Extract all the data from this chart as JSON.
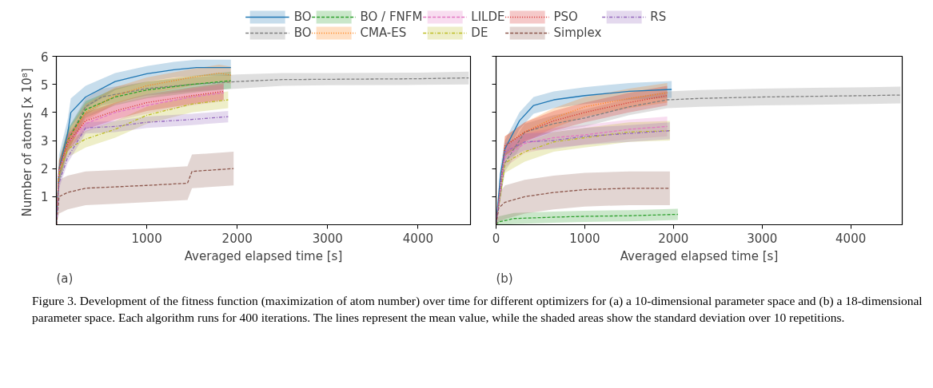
{
  "chart_data": [
    {
      "type": "line",
      "xlabel": "Averaged elapsed time [s]",
      "ylabel": "Number of atoms  [x 10⁸]",
      "xlim": [
        0,
        4580
      ],
      "ylim": [
        0,
        6
      ],
      "xticks": [
        1000,
        2000,
        3000,
        4000
      ],
      "yticks": [
        1,
        2,
        3,
        4,
        5,
        6
      ],
      "legend": "top",
      "grid": false,
      "annotations": [
        "(a)",
        "Figure 3. Development of the fitness function (maximization of atom number) over time for different optimizers for (a) a 10-dimensional parameter space and (b) a 18-dimensional parameter space. Each algorithm runs for 400 iterations. The lines represent the mean value, while the shaded areas show the standard deviation over 10 repetitions."
      ],
      "series": [
        {
          "name": "BO",
          "color": "#1f77b4",
          "line_style": "solid",
          "x": [
            0,
            30,
            125,
            160,
            323,
            650,
            1000,
            1300,
            1550,
            1930
          ],
          "values": [
            0,
            2.0,
            3.25,
            4.0,
            4.55,
            5.1,
            5.38,
            5.52,
            5.6,
            5.6
          ],
          "lower": [
            0,
            1.5,
            2.75,
            3.5,
            4.15,
            4.8,
            5.1,
            5.25,
            5.3,
            5.3
          ],
          "upper": [
            0,
            2.5,
            3.75,
            4.5,
            4.95,
            5.4,
            5.65,
            5.8,
            5.88,
            5.88
          ]
        },
        {
          "name": "BO",
          "color": "#7f7f7f",
          "line_style": "dashed",
          "x": [
            0,
            30,
            125,
            323,
            500,
            1000,
            1500,
            2000,
            2500,
            3000,
            4000,
            4560
          ],
          "values": [
            0,
            1.8,
            3.0,
            4.2,
            4.55,
            4.85,
            5.0,
            5.1,
            5.17,
            5.18,
            5.2,
            5.23
          ],
          "lower": [
            0,
            1.4,
            2.6,
            3.9,
            4.25,
            4.6,
            4.75,
            4.85,
            4.95,
            4.97,
            4.98,
            5.0
          ],
          "upper": [
            0,
            2.2,
            3.4,
            4.5,
            4.85,
            5.1,
            5.25,
            5.35,
            5.4,
            5.4,
            5.42,
            5.45
          ]
        },
        {
          "name": "BO / FNFM",
          "color": "#2ca02c",
          "line_style": "dashed",
          "x": [
            0,
            30,
            125,
            323,
            650,
            1000,
            1500,
            1930
          ],
          "values": [
            0,
            1.9,
            3.0,
            4.1,
            4.55,
            4.8,
            5.0,
            5.13
          ],
          "lower": [
            0,
            1.5,
            2.6,
            3.8,
            4.25,
            4.5,
            4.7,
            4.85
          ],
          "upper": [
            0,
            2.3,
            3.4,
            4.4,
            4.85,
            5.1,
            5.3,
            5.45
          ]
        },
        {
          "name": "CMA-ES",
          "color": "#ff7f0e",
          "line_style": "dotted",
          "x": [
            0,
            30,
            125,
            323,
            650,
            1000,
            1500,
            1800,
            1930
          ],
          "values": [
            0,
            2.0,
            3.0,
            4.0,
            4.6,
            4.95,
            5.25,
            5.4,
            5.33
          ],
          "lower": [
            0,
            1.7,
            2.7,
            3.7,
            4.3,
            4.65,
            4.95,
            5.1,
            5.03
          ],
          "upper": [
            0,
            2.3,
            3.3,
            4.3,
            4.9,
            5.25,
            5.55,
            5.7,
            5.63
          ]
        },
        {
          "name": "LILDE",
          "color": "#e377c2",
          "line_style": "dashed",
          "x": [
            0,
            30,
            125,
            323,
            650,
            1000,
            1500,
            1850
          ],
          "values": [
            0,
            1.9,
            2.9,
            3.6,
            4.0,
            4.25,
            4.55,
            4.7
          ],
          "lower": [
            0,
            1.6,
            2.6,
            3.3,
            3.7,
            3.95,
            4.25,
            4.4
          ],
          "upper": [
            0,
            2.2,
            3.2,
            3.9,
            4.3,
            4.55,
            4.85,
            5.0
          ]
        },
        {
          "name": "DE",
          "color": "#bcbd22",
          "line_style": "dashdot",
          "x": [
            0,
            30,
            125,
            323,
            650,
            1000,
            1500,
            1900
          ],
          "values": [
            0,
            1.8,
            2.7,
            3.05,
            3.4,
            3.9,
            4.3,
            4.45
          ],
          "lower": [
            0,
            1.5,
            2.4,
            2.75,
            3.1,
            3.6,
            4.0,
            4.15
          ],
          "upper": [
            0,
            2.1,
            3.0,
            3.35,
            3.7,
            4.2,
            4.6,
            4.75
          ]
        },
        {
          "name": "PSO",
          "color": "#d62728",
          "line_style": "dotted",
          "x": [
            0,
            30,
            125,
            323,
            650,
            1000,
            1500,
            1850
          ],
          "values": [
            0,
            2.0,
            2.9,
            3.7,
            4.05,
            4.35,
            4.6,
            4.75
          ],
          "lower": [
            0,
            1.7,
            2.6,
            3.4,
            3.75,
            4.05,
            4.3,
            4.45
          ],
          "upper": [
            0,
            2.3,
            3.2,
            4.0,
            4.35,
            4.65,
            4.9,
            5.05
          ]
        },
        {
          "name": "Simplex",
          "color": "#8c564b",
          "line_style": "dashed",
          "x": [
            0,
            30,
            125,
            323,
            650,
            1000,
            1450,
            1500,
            1960
          ],
          "values": [
            0,
            1.0,
            1.15,
            1.3,
            1.35,
            1.4,
            1.48,
            1.9,
            2.0
          ],
          "lower": [
            0,
            0.4,
            0.55,
            0.7,
            0.75,
            0.8,
            0.88,
            1.3,
            1.4
          ],
          "upper": [
            0,
            1.6,
            1.75,
            1.9,
            1.95,
            2.0,
            2.08,
            2.5,
            2.6
          ]
        },
        {
          "name": "RS",
          "color": "#9467bd",
          "line_style": "dashdot",
          "x": [
            0,
            30,
            125,
            323,
            650,
            1000,
            1500,
            1900
          ],
          "values": [
            0,
            1.5,
            2.4,
            3.45,
            3.5,
            3.65,
            3.75,
            3.85
          ],
          "lower": [
            0,
            1.3,
            2.2,
            3.25,
            3.3,
            3.45,
            3.55,
            3.65
          ],
          "upper": [
            0,
            1.7,
            2.6,
            3.65,
            3.7,
            3.85,
            3.95,
            4.05
          ]
        }
      ]
    },
    {
      "type": "line",
      "xlabel": "Averaged elapsed time [s]",
      "xlim": [
        0,
        4580
      ],
      "ylim": [
        0,
        6
      ],
      "xticks": [
        0,
        1000,
        2000,
        3000,
        4000
      ],
      "yticks": [
        1,
        2,
        3,
        4,
        5,
        6
      ],
      "tick_labels": "x",
      "grid": false,
      "annotations": [
        "(b)"
      ],
      "series": [
        {
          "color": "#1f77b4",
          "line_style": "solid",
          "x": [
            0,
            50,
            100,
            263,
            423,
            650,
            1000,
            1500,
            1980
          ],
          "values": [
            0,
            1.8,
            2.7,
            3.7,
            4.25,
            4.45,
            4.6,
            4.75,
            4.82
          ],
          "lower": [
            0,
            1.5,
            2.4,
            3.4,
            3.95,
            4.15,
            4.3,
            4.45,
            4.52
          ],
          "upper": [
            0,
            2.1,
            3.0,
            4.0,
            4.55,
            4.75,
            4.9,
            5.05,
            5.12
          ]
        },
        {
          "color": "#7f7f7f",
          "line_style": "dashed",
          "x": [
            0,
            100,
            323,
            650,
            1000,
            1500,
            1930,
            2300,
            3000,
            4200,
            4560
          ],
          "values": [
            0,
            2.2,
            3.3,
            3.6,
            3.8,
            4.2,
            4.45,
            4.5,
            4.55,
            4.6,
            4.62
          ],
          "lower": [
            0,
            1.9,
            3.0,
            3.3,
            3.5,
            3.9,
            4.15,
            4.2,
            4.25,
            4.3,
            4.32
          ],
          "upper": [
            0,
            2.5,
            3.6,
            3.9,
            4.1,
            4.5,
            4.75,
            4.8,
            4.85,
            4.9,
            4.92
          ]
        },
        {
          "color": "#2ca02c",
          "line_style": "dashed",
          "x": [
            0,
            30,
            200,
            650,
            1000,
            1500,
            2050
          ],
          "values": [
            0,
            0.1,
            0.22,
            0.27,
            0.3,
            0.32,
            0.37
          ],
          "lower": [
            0,
            0,
            0.02,
            0.07,
            0.1,
            0.12,
            0.17
          ],
          "upper": [
            0,
            0.3,
            0.42,
            0.47,
            0.5,
            0.52,
            0.57
          ]
        },
        {
          "color": "#ff7f0e",
          "line_style": "dotted",
          "x": [
            0,
            100,
            323,
            650,
            1000,
            1500,
            1930
          ],
          "values": [
            0,
            2.8,
            3.3,
            3.8,
            4.2,
            4.5,
            4.7
          ],
          "lower": [
            0,
            2.45,
            2.95,
            3.45,
            3.85,
            4.15,
            4.35
          ],
          "upper": [
            0,
            3.15,
            3.65,
            4.15,
            4.55,
            4.85,
            5.05
          ]
        },
        {
          "color": "#e377c2",
          "line_style": "dashed",
          "x": [
            0,
            100,
            323,
            650,
            1000,
            1500,
            1930
          ],
          "values": [
            0,
            2.4,
            2.9,
            3.1,
            3.2,
            3.4,
            3.5
          ],
          "lower": [
            0,
            2.05,
            2.55,
            2.75,
            2.85,
            3.05,
            3.15
          ],
          "upper": [
            0,
            2.75,
            3.25,
            3.45,
            3.55,
            3.75,
            3.85
          ]
        },
        {
          "color": "#bcbd22",
          "line_style": "dashdot",
          "x": [
            0,
            100,
            323,
            650,
            1000,
            1500,
            1960
          ],
          "values": [
            0,
            2.2,
            2.6,
            2.95,
            3.1,
            3.3,
            3.35
          ],
          "lower": [
            0,
            1.85,
            2.25,
            2.6,
            2.75,
            2.95,
            3.0
          ],
          "upper": [
            0,
            2.55,
            2.95,
            3.3,
            3.45,
            3.65,
            3.7
          ]
        },
        {
          "color": "#d62728",
          "line_style": "dotted",
          "x": [
            0,
            100,
            323,
            650,
            1000,
            1500,
            1930
          ],
          "values": [
            0,
            2.8,
            3.3,
            3.7,
            4.0,
            4.35,
            4.6
          ],
          "lower": [
            0,
            2.45,
            2.95,
            3.35,
            3.65,
            4.0,
            4.25
          ],
          "upper": [
            0,
            3.15,
            3.65,
            4.05,
            4.35,
            4.7,
            4.95
          ]
        },
        {
          "color": "#8c564b",
          "line_style": "dashed",
          "x": [
            0,
            30,
            100,
            323,
            650,
            1000,
            1500,
            1960
          ],
          "values": [
            0,
            0.6,
            0.8,
            1.0,
            1.15,
            1.25,
            1.3,
            1.3
          ],
          "lower": [
            0,
            0.1,
            0.2,
            0.4,
            0.55,
            0.65,
            0.7,
            0.7
          ],
          "upper": [
            0,
            1.1,
            1.4,
            1.6,
            1.75,
            1.85,
            1.9,
            1.9
          ]
        },
        {
          "color": "#9467bd",
          "line_style": "dashdot",
          "x": [
            0,
            100,
            323,
            650,
            1000,
            1500,
            1960
          ],
          "values": [
            0,
            2.6,
            2.95,
            3.0,
            3.15,
            3.25,
            3.35
          ],
          "lower": [
            0,
            2.3,
            2.65,
            2.7,
            2.85,
            2.95,
            3.05
          ],
          "upper": [
            0,
            2.9,
            3.25,
            3.3,
            3.45,
            3.55,
            3.65
          ]
        }
      ]
    }
  ]
}
